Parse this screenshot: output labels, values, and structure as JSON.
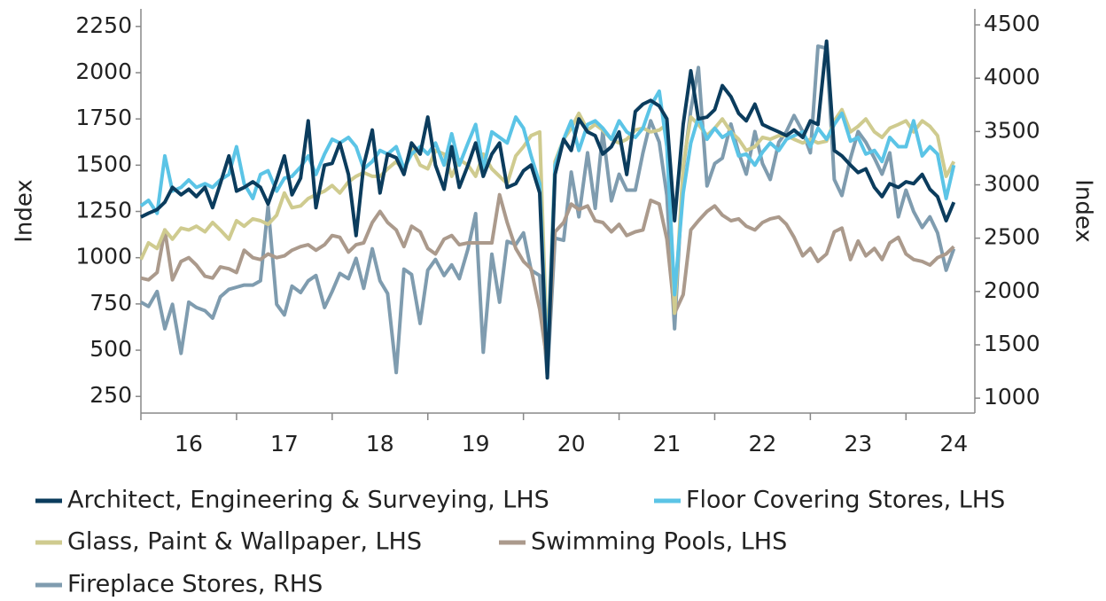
{
  "chart_data": {
    "type": "line",
    "y_label": "Index",
    "y2_label": "Index",
    "x": [
      16,
      16.08,
      16.17,
      16.25,
      16.33,
      16.42,
      16.5,
      16.58,
      16.67,
      16.75,
      16.83,
      16.92,
      17,
      17.08,
      17.17,
      17.25,
      17.33,
      17.42,
      17.5,
      17.58,
      17.67,
      17.75,
      17.83,
      17.92,
      18,
      18.08,
      18.17,
      18.25,
      18.33,
      18.42,
      18.5,
      18.58,
      18.67,
      18.75,
      18.83,
      18.92,
      19,
      19.08,
      19.17,
      19.25,
      19.33,
      19.42,
      19.5,
      19.58,
      19.67,
      19.75,
      19.83,
      19.92,
      20,
      20.08,
      20.17,
      20.25,
      20.33,
      20.42,
      20.5,
      20.58,
      20.67,
      20.75,
      20.83,
      20.92,
      21,
      21.08,
      21.17,
      21.25,
      21.33,
      21.42,
      21.5,
      21.58,
      21.67,
      21.75,
      21.83,
      21.92,
      22,
      22.08,
      22.17,
      22.25,
      22.33,
      22.42,
      22.5,
      22.58,
      22.67,
      22.75,
      22.83,
      22.92,
      23,
      23.08,
      23.17,
      23.25,
      23.33,
      23.42,
      23.5,
      23.58,
      23.67,
      23.75,
      23.83,
      23.92,
      24,
      24.08,
      24.17,
      24.25,
      24.33,
      24.42,
      24.5
    ],
    "xlim": [
      16,
      24.72
    ],
    "xticks": [
      16,
      17,
      18,
      19,
      20,
      21,
      22,
      23,
      24
    ],
    "ylim": [
      160,
      2345
    ],
    "yticks": [
      250,
      500,
      750,
      1000,
      1250,
      1500,
      1750,
      2000,
      2250
    ],
    "y2lim": [
      860,
      4650
    ],
    "y2ticks": [
      1000,
      1500,
      2000,
      2500,
      3000,
      3500,
      4000,
      4500
    ],
    "series": [
      {
        "name": "Architect, Engineering & Surveying, LHS",
        "color": "#0b3c5d",
        "values": [
          1220,
          1240,
          1260,
          1300,
          1380,
          1340,
          1370,
          1330,
          1380,
          1270,
          1400,
          1550,
          1360,
          1380,
          1410,
          1380,
          1290,
          1420,
          1550,
          1340,
          1430,
          1740,
          1270,
          1500,
          1510,
          1620,
          1450,
          1120,
          1500,
          1690,
          1350,
          1560,
          1540,
          1450,
          1620,
          1560,
          1760,
          1500,
          1370,
          1600,
          1380,
          1500,
          1620,
          1440,
          1560,
          1620,
          1380,
          1400,
          1470,
          1500,
          1350,
          350,
          1450,
          1640,
          1580,
          1750,
          1680,
          1660,
          1560,
          1600,
          1680,
          1450,
          1790,
          1830,
          1850,
          1820,
          1750,
          1200,
          1720,
          2010,
          1750,
          1760,
          1800,
          1930,
          1870,
          1780,
          1740,
          1830,
          1720,
          1700,
          1680,
          1660,
          1690,
          1650,
          1740,
          1720,
          2170,
          1580,
          1550,
          1500,
          1460,
          1480,
          1380,
          1330,
          1400,
          1380,
          1410,
          1400,
          1450,
          1370,
          1330,
          1200,
          1300
        ]
      },
      {
        "name": "Floor Covering Stores, LHS",
        "color": "#5bc4e6",
        "values": [
          1280,
          1310,
          1240,
          1550,
          1360,
          1380,
          1420,
          1380,
          1400,
          1380,
          1420,
          1450,
          1600,
          1400,
          1320,
          1450,
          1470,
          1360,
          1430,
          1440,
          1490,
          1550,
          1450,
          1560,
          1640,
          1620,
          1650,
          1600,
          1480,
          1520,
          1580,
          1560,
          1600,
          1480,
          1560,
          1600,
          1560,
          1620,
          1500,
          1670,
          1500,
          1620,
          1720,
          1480,
          1680,
          1650,
          1620,
          1760,
          1700,
          1550,
          1400,
          400,
          1500,
          1640,
          1740,
          1580,
          1720,
          1740,
          1700,
          1640,
          1740,
          1680,
          1650,
          1700,
          1820,
          1900,
          1600,
          800,
          1350,
          1620,
          1760,
          1640,
          1700,
          1650,
          1680,
          1550,
          1560,
          1500,
          1570,
          1620,
          1580,
          1640,
          1660,
          1680,
          1600,
          1700,
          1640,
          1720,
          1780,
          1630,
          1650,
          1560,
          1580,
          1520,
          1650,
          1600,
          1600,
          1740,
          1550,
          1600,
          1560,
          1320,
          1500
        ]
      },
      {
        "name": "Glass, Paint & Wallpaper, LHS",
        "color": "#cfcb8f",
        "values": [
          990,
          1080,
          1050,
          1150,
          1100,
          1160,
          1150,
          1170,
          1140,
          1190,
          1150,
          1100,
          1200,
          1170,
          1210,
          1200,
          1180,
          1230,
          1350,
          1270,
          1280,
          1320,
          1340,
          1360,
          1390,
          1350,
          1410,
          1440,
          1460,
          1440,
          1440,
          1480,
          1520,
          1470,
          1600,
          1500,
          1480,
          1580,
          1560,
          1440,
          1530,
          1500,
          1440,
          1560,
          1480,
          1440,
          1400,
          1550,
          1600,
          1660,
          1680,
          450,
          1520,
          1640,
          1700,
          1780,
          1690,
          1720,
          1690,
          1640,
          1620,
          1640,
          1690,
          1700,
          1680,
          1690,
          1720,
          700,
          1500,
          1760,
          1720,
          1660,
          1700,
          1750,
          1680,
          1640,
          1580,
          1600,
          1650,
          1640,
          1660,
          1660,
          1640,
          1620,
          1640,
          1620,
          1630,
          1740,
          1800,
          1680,
          1710,
          1750,
          1680,
          1650,
          1700,
          1720,
          1740,
          1680,
          1740,
          1710,
          1660,
          1440,
          1520
        ]
      },
      {
        "name": "Swimming Pools, LHS",
        "color": "#ab9a8c",
        "values": [
          890,
          880,
          920,
          1150,
          880,
          980,
          1000,
          960,
          900,
          890,
          950,
          940,
          920,
          1040,
          1000,
          990,
          1020,
          1000,
          1010,
          1040,
          1060,
          1070,
          1040,
          1070,
          1120,
          1110,
          1030,
          1070,
          1080,
          1190,
          1250,
          1190,
          1150,
          1060,
          1170,
          1140,
          1050,
          1020,
          1100,
          1120,
          1070,
          1080,
          1080,
          1080,
          1080,
          1340,
          1190,
          1050,
          980,
          940,
          720,
          430,
          1140,
          1190,
          1290,
          1260,
          1280,
          1200,
          1190,
          1140,
          1180,
          1120,
          1140,
          1150,
          1310,
          1290,
          1100,
          700,
          800,
          1150,
          1200,
          1250,
          1280,
          1230,
          1200,
          1210,
          1170,
          1150,
          1190,
          1210,
          1220,
          1180,
          1110,
          1010,
          1050,
          980,
          1020,
          1140,
          1160,
          990,
          1090,
          1010,
          1050,
          990,
          1080,
          1110,
          1020,
          990,
          980,
          960,
          1000,
          1020,
          1060
        ]
      },
      {
        "name": "Fireplace Stores, RHS",
        "color": "#7f9caf",
        "axis": "y2",
        "values": [
          1900,
          1860,
          2000,
          1650,
          1880,
          1420,
          1900,
          1850,
          1820,
          1750,
          1950,
          2020,
          2040,
          2060,
          2060,
          2100,
          2800,
          1880,
          1780,
          2050,
          1990,
          2100,
          2150,
          1850,
          2000,
          2170,
          2120,
          2310,
          2030,
          2400,
          2100,
          1980,
          1240,
          2210,
          2160,
          1700,
          2200,
          2300,
          2150,
          2250,
          2120,
          2400,
          2730,
          1430,
          2350,
          1900,
          2470,
          2440,
          2550,
          2200,
          2150,
          1200,
          2500,
          2480,
          3120,
          2700,
          3300,
          2780,
          3500,
          2850,
          3100,
          2950,
          2950,
          3300,
          3600,
          3400,
          2900,
          1650,
          3150,
          3700,
          4100,
          2990,
          3200,
          3250,
          3570,
          3300,
          3100,
          3500,
          3200,
          3050,
          3400,
          3500,
          3650,
          3500,
          3300,
          4300,
          4280,
          3050,
          2900,
          3250,
          3500,
          3400,
          3250,
          3100,
          3300,
          2700,
          2950,
          2750,
          2600,
          2700,
          2550,
          2200,
          2400
        ]
      }
    ]
  }
}
